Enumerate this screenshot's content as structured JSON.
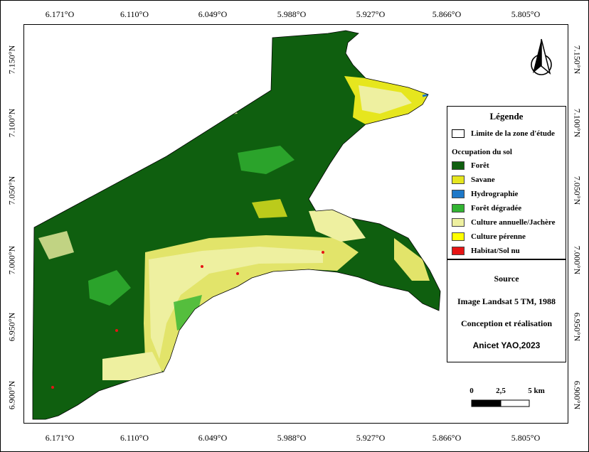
{
  "axes": {
    "lon_ticks": [
      "6.171°O",
      "6.110°O",
      "6.049°O",
      "5.988°O",
      "5.927°O",
      "5.866°O",
      "5.805°O"
    ],
    "lat_ticks": [
      "7.150°N",
      "7.100°N",
      "7.050°N",
      "7.000°N",
      "6.950°N",
      "6.900°N"
    ]
  },
  "legend": {
    "title": "Légende",
    "boundary_label": "Limite de la zone d'étude",
    "section_title": "Occupation du sol",
    "classes": [
      {
        "label": "Forêt",
        "color": "#0f5f0f"
      },
      {
        "label": "Savane",
        "color": "#e6e61e"
      },
      {
        "label": "Hydrographie",
        "color": "#1e78c8"
      },
      {
        "label": "Forêt dégradée",
        "color": "#32b432"
      },
      {
        "label": "Culture annuelle/Jachère",
        "color": "#eef0a0"
      },
      {
        "label": "Culture pérenne",
        "color": "#ffff00"
      },
      {
        "label": "Habitat/Sol nu",
        "color": "#e61414"
      }
    ]
  },
  "source": {
    "heading": "Source",
    "image": "Image Landsat 5 TM, 1988",
    "design_heading": "Conception et réalisation",
    "author": "Anicet YAO,2023"
  },
  "scale_bar": {
    "labels": [
      "0",
      "2,5",
      "5 km"
    ]
  },
  "north_arrow": {
    "icon": "north-arrow-icon",
    "label": "N"
  }
}
